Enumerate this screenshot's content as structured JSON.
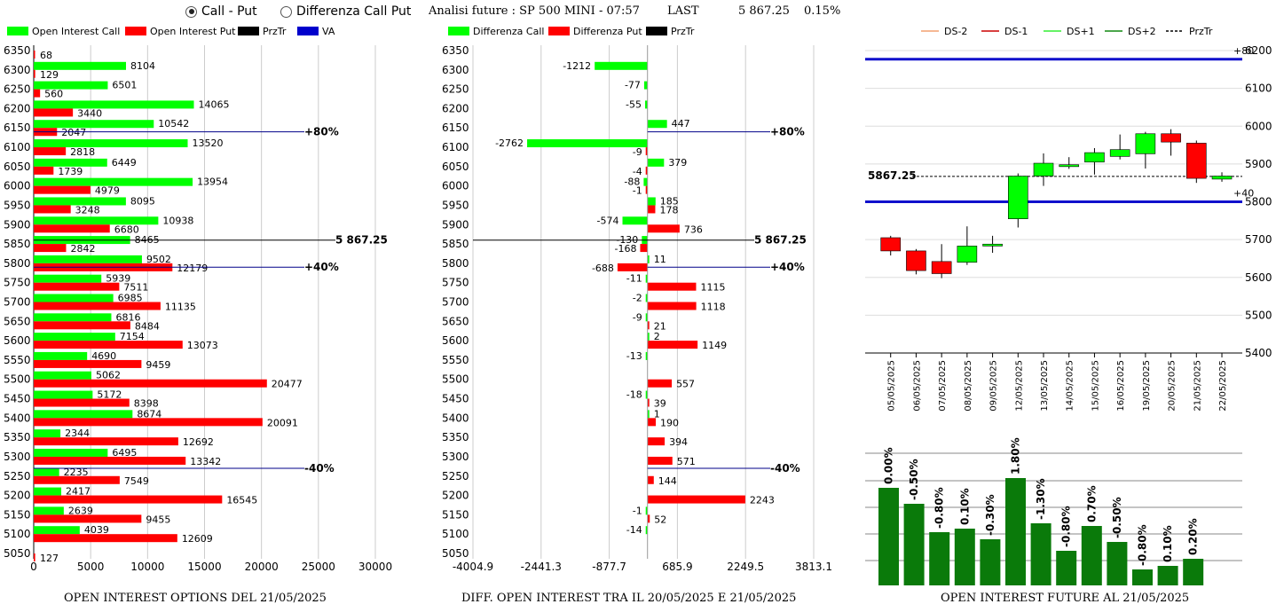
{
  "header": {
    "radio_call_put": "Call - Put",
    "radio_diff": "Differenza Call Put",
    "title": "Analisi future : SP 500 MINI - 07:57",
    "last_label": "LAST",
    "last_value": "5 867.25",
    "change": "0.15%"
  },
  "footers": {
    "left": "OPEN INTEREST OPTIONS DEL 21/05/2025",
    "middle": "DIFF. OPEN INTEREST TRA IL 20/05/2025 E 21/05/2025",
    "right": "OPEN INTEREST FUTURE AL 21/05/2025"
  },
  "colors": {
    "call": "#00ff00",
    "put": "#ff0000",
    "przTr": "#000000",
    "va": "#0000cc",
    "dsMinus2": "#f4a070",
    "dsMinus1": "#cc0000",
    "dsPlus1": "#33ee33",
    "dsPlus2": "#118811",
    "futureBar": "#0a7a0a",
    "level": "#1010cc"
  },
  "chart_data": [
    {
      "type": "bar",
      "orientation": "horizontal",
      "legend": [
        "Open Interest Call",
        "Open Interest Put",
        "PrzTr",
        "VA"
      ],
      "categories": [
        6350,
        6300,
        6250,
        6200,
        6150,
        6100,
        6050,
        6000,
        5950,
        5900,
        5850,
        5800,
        5750,
        5700,
        5650,
        5600,
        5550,
        5500,
        5450,
        5400,
        5350,
        5300,
        5250,
        5200,
        5150,
        5100,
        5050
      ],
      "series": [
        {
          "name": "Open Interest Call",
          "values": [
            0,
            8104,
            6501,
            14065,
            10542,
            13520,
            6449,
            13954,
            8095,
            10938,
            8465,
            9502,
            5939,
            6985,
            6816,
            7154,
            4690,
            5062,
            5172,
            8674,
            2344,
            6495,
            2235,
            2417,
            2639,
            4039,
            0
          ]
        },
        {
          "name": "Open Interest Put",
          "values": [
            68,
            129,
            560,
            3440,
            2047,
            2818,
            1739,
            4979,
            3248,
            6680,
            2842,
            12179,
            7511,
            11135,
            8484,
            13073,
            9459,
            20477,
            8398,
            20091,
            12692,
            13342,
            7549,
            16545,
            9455,
            12609,
            127
          ]
        }
      ],
      "xticks": [
        "0",
        "5000",
        "10000",
        "15000",
        "20000",
        "25000",
        "30000"
      ],
      "xlim": [
        0,
        30000
      ],
      "annotations": [
        {
          "level": 6140,
          "text": "+80%"
        },
        {
          "level": 5860,
          "text": "5 867.25"
        },
        {
          "level": 5790,
          "text": "+40%"
        },
        {
          "level": 5270,
          "text": "-40%"
        }
      ]
    },
    {
      "type": "bar",
      "orientation": "horizontal",
      "legend": [
        "Differenza Call",
        "Differenza Put",
        "PrzTr"
      ],
      "categories": [
        6350,
        6300,
        6250,
        6200,
        6150,
        6100,
        6050,
        6000,
        5950,
        5900,
        5850,
        5800,
        5750,
        5700,
        5650,
        5600,
        5550,
        5500,
        5450,
        5400,
        5350,
        5300,
        5250,
        5200,
        5150,
        5100,
        5050
      ],
      "series": [
        {
          "name": "Differenza Call",
          "values": [
            null,
            -1212,
            -77,
            -55,
            447,
            -2762,
            379,
            -88,
            185,
            -574,
            -130,
            11,
            -11,
            -2,
            -9,
            2,
            -13,
            null,
            -18,
            1,
            null,
            null,
            null,
            null,
            -1,
            -14,
            null
          ]
        },
        {
          "name": "Differenza Put",
          "values": [
            null,
            null,
            null,
            null,
            null,
            -9,
            -4,
            -1,
            178,
            736,
            -168,
            -688,
            1115,
            1118,
            21,
            1149,
            null,
            557,
            39,
            190,
            394,
            571,
            144,
            2243,
            52,
            null,
            null
          ]
        }
      ],
      "xticks": [
        "-4004.9",
        "-2441.3",
        "-877.7",
        "685.9",
        "2249.5",
        "3813.1"
      ],
      "xlim": [
        -4004.9,
        3813.1
      ],
      "annotations": [
        {
          "level": 6140,
          "text": "+80%"
        },
        {
          "level": 5860,
          "text": "5 867.25"
        },
        {
          "level": 5790,
          "text": "+40%"
        },
        {
          "level": 5270,
          "text": "-40%"
        }
      ]
    },
    {
      "type": "candlestick",
      "legend": [
        "DS-2",
        "DS-1",
        "DS+1",
        "DS+2",
        "PrzTr"
      ],
      "x": [
        "05/05/2025",
        "06/05/2025",
        "07/05/2025",
        "08/05/2025",
        "09/05/2025",
        "12/05/2025",
        "13/05/2025",
        "14/05/2025",
        "15/05/2025",
        "16/05/2025",
        "19/05/2025",
        "20/05/2025",
        "21/05/2025",
        "22/05/2025"
      ],
      "candles": [
        {
          "open": 5705,
          "close": 5670,
          "high": 5710,
          "low": 5658
        },
        {
          "open": 5670,
          "close": 5618,
          "high": 5675,
          "low": 5608
        },
        {
          "open": 5642,
          "close": 5610,
          "high": 5688,
          "low": 5598
        },
        {
          "open": 5640,
          "close": 5683,
          "high": 5735,
          "low": 5633
        },
        {
          "open": 5683,
          "close": 5688,
          "high": 5710,
          "low": 5665
        },
        {
          "open": 5755,
          "close": 5868,
          "high": 5875,
          "low": 5732
        },
        {
          "open": 5868,
          "close": 5902,
          "high": 5928,
          "low": 5842
        },
        {
          "open": 5893,
          "close": 5898,
          "high": 5918,
          "low": 5887
        },
        {
          "open": 5905,
          "close": 5930,
          "high": 5942,
          "low": 5872
        },
        {
          "open": 5920,
          "close": 5938,
          "high": 5978,
          "low": 5912
        },
        {
          "open": 5927,
          "close": 5980,
          "high": 5985,
          "low": 5888
        },
        {
          "open": 5980,
          "close": 5958,
          "high": 5992,
          "low": 5922
        },
        {
          "open": 5955,
          "close": 5862,
          "high": 5962,
          "low": 5850
        },
        {
          "open": 5860,
          "close": 5868,
          "high": 5878,
          "low": 5853
        }
      ],
      "yticks": [
        "5400",
        "5500",
        "5600",
        "5700",
        "5800",
        "5900",
        "6000",
        "6100",
        "6200"
      ],
      "ylim": [
        5400,
        6200
      ],
      "levels": [
        {
          "value": 6177,
          "label": "+80"
        },
        {
          "value": 5800,
          "label": "+40"
        }
      ],
      "last_label": "5867.25",
      "last_value": 5867.25
    },
    {
      "type": "bar",
      "categories": [
        "05/05/2025",
        "06/05/2025",
        "07/05/2025",
        "08/05/2025",
        "09/05/2025",
        "12/05/2025",
        "13/05/2025",
        "14/05/2025",
        "15/05/2025",
        "16/05/2025",
        "19/05/2025",
        "20/05/2025",
        "21/05/2025"
      ],
      "labels": [
        "0.00%",
        "-0.50%",
        "-0.80%",
        "0.10%",
        "-0.30%",
        "1.80%",
        "-1.30%",
        "-0.80%",
        "0.70%",
        "-0.50%",
        "-0.80%",
        "0.10%",
        "0.20%"
      ],
      "values": [
        0.0,
        -0.5,
        -0.8,
        0.1,
        -0.3,
        1.8,
        -1.3,
        -0.8,
        0.7,
        -0.5,
        -0.8,
        0.1,
        0.2
      ],
      "bar_heights": [
        110,
        92,
        60,
        64,
        52,
        121,
        70,
        39,
        67,
        49,
        18,
        22,
        30
      ]
    }
  ]
}
